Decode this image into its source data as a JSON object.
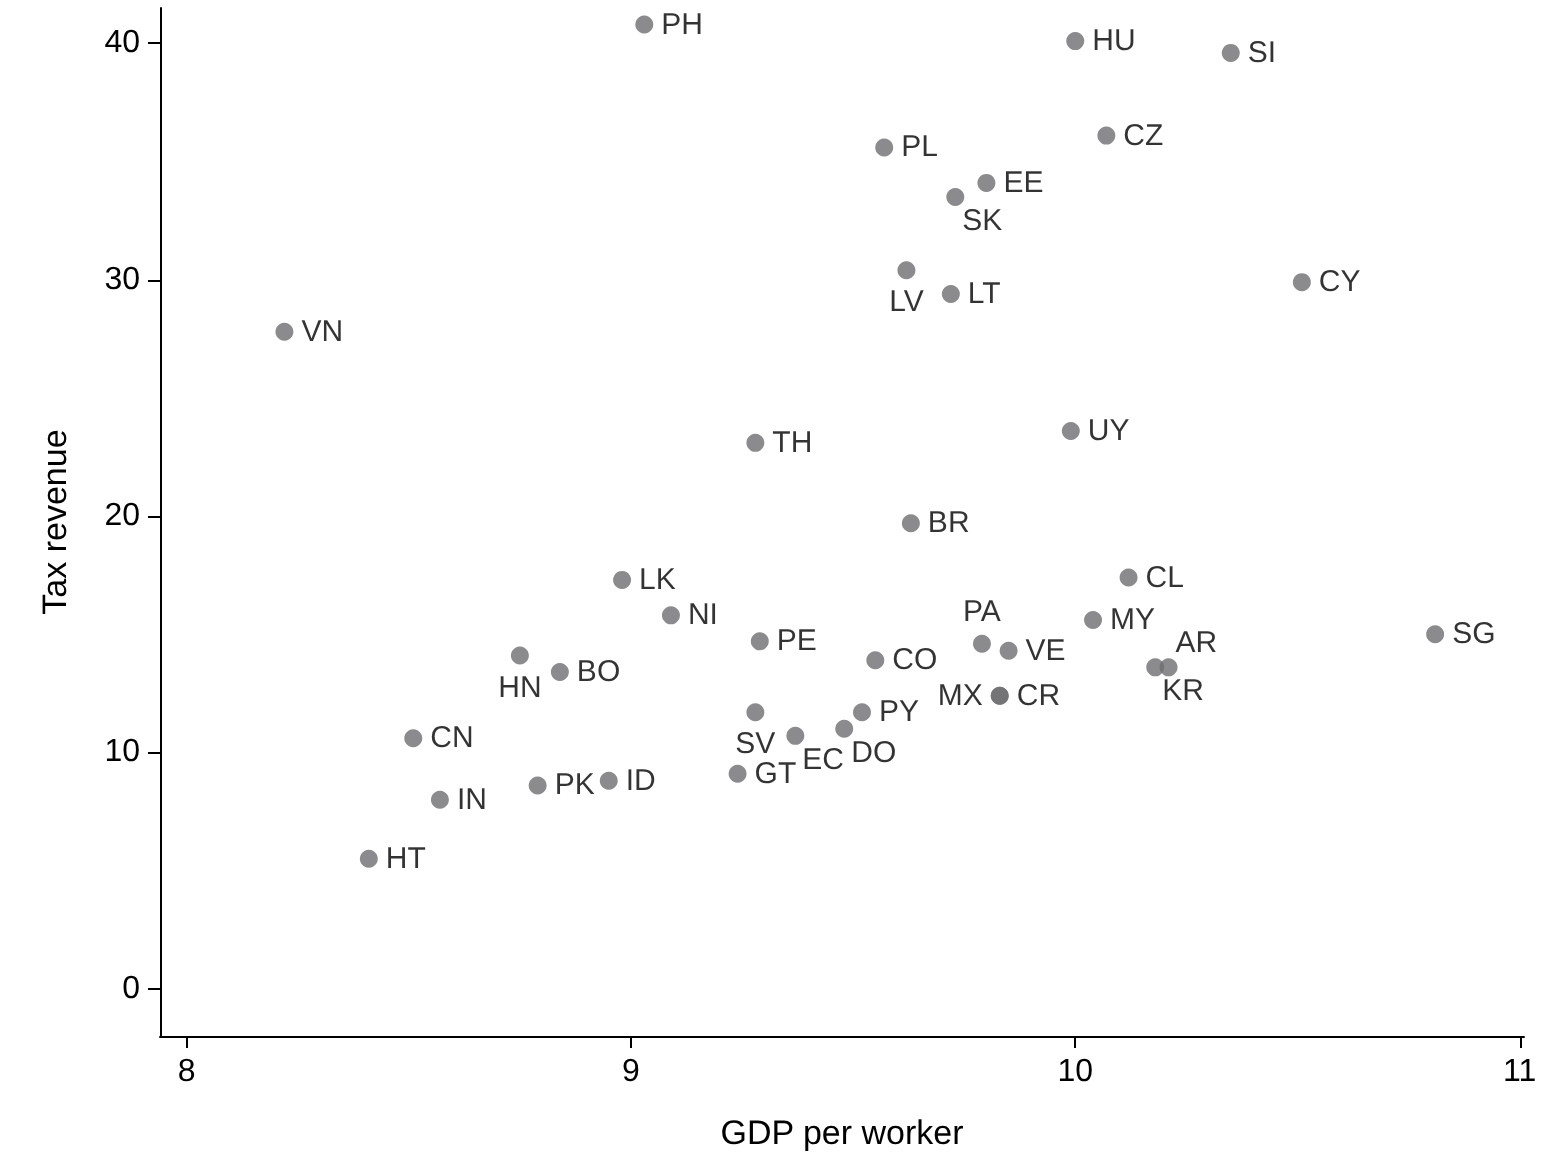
{
  "chart_data": {
    "type": "scatter",
    "xlabel": "GDP per worker",
    "ylabel": "Tax revenue",
    "xlim": [
      7.94,
      11.01
    ],
    "xticks": [
      8,
      9,
      10,
      11
    ],
    "ylim": [
      -2,
      41.5
    ],
    "yticks": [
      0,
      10,
      20,
      30,
      40
    ],
    "grid": false,
    "marker": "circle",
    "series": [
      {
        "color": "#6e6e70",
        "x": [
          9.03,
          9.57,
          9.73,
          9.8,
          9.62,
          9.72,
          10.0,
          10.35,
          10.07,
          10.51,
          9.99,
          9.63,
          8.22,
          9.28,
          8.98,
          9.09,
          8.75,
          8.84,
          9.29,
          9.55,
          9.28,
          9.37,
          9.48,
          9.52,
          9.24,
          8.51,
          8.57,
          8.79,
          8.95,
          8.41,
          10.12,
          10.04,
          9.79,
          9.85,
          9.83,
          9.83,
          10.18,
          10.21,
          10.81
        ],
        "values": [
          40.8,
          35.6,
          33.5,
          34.1,
          30.4,
          29.4,
          40.1,
          39.6,
          36.1,
          29.9,
          23.6,
          19.7,
          27.8,
          23.1,
          17.3,
          15.8,
          14.1,
          13.4,
          14.7,
          13.9,
          11.7,
          10.7,
          11.0,
          11.7,
          9.1,
          10.6,
          8.0,
          8.6,
          8.8,
          5.5,
          17.4,
          15.6,
          14.6,
          14.3,
          12.4,
          12.4,
          13.6,
          13.6,
          15.0
        ],
        "value_labels": [
          "PH",
          "PL",
          "SK",
          "EE",
          "LV",
          "LT",
          "HU",
          "SI",
          "CZ",
          "CY",
          "UY",
          "BR",
          "VN",
          "TH",
          "LK",
          "NI",
          "HN",
          "BO",
          "PE",
          "CO",
          "SV",
          "EC",
          "DO",
          "PY",
          "GT",
          "CN",
          "IN",
          "PK",
          "ID",
          "HT",
          "CL",
          "MY",
          "PA",
          "VE",
          "CR",
          "MX",
          "KR",
          "AR",
          "SG"
        ]
      }
    ]
  }
}
